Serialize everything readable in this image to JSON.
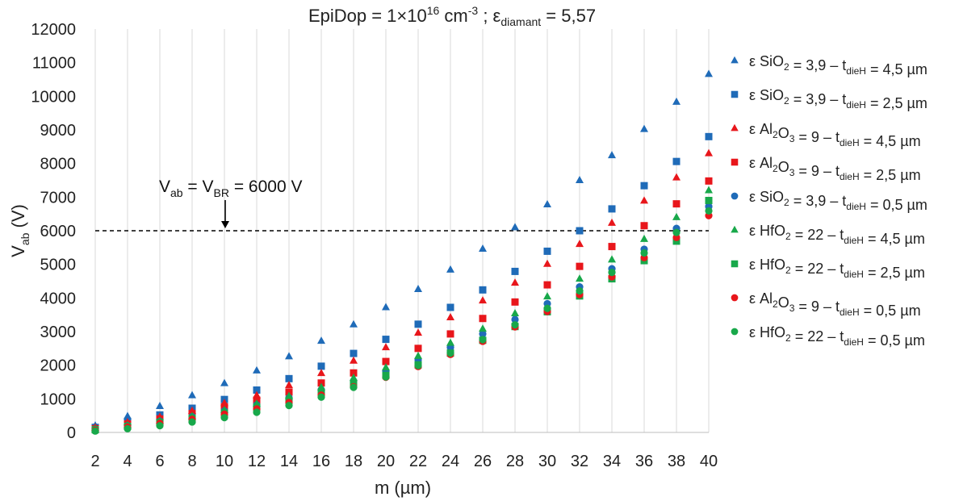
{
  "chart_data": {
    "type": "scatter",
    "title": {
      "prefix": "EpiDop = 1×10",
      "sup1": "16",
      "mid": " cm",
      "sup2": "-3",
      "mid2": " ; ε",
      "sub": "diamant",
      "suffix": " = 5,57"
    },
    "xlabel": "m (µm)",
    "ylabel": {
      "main": "V",
      "sub": "ab",
      "unit": " (V)"
    },
    "xlim": [
      2,
      40
    ],
    "ylim": [
      0,
      12000
    ],
    "x_ticks": [
      2,
      4,
      6,
      8,
      10,
      12,
      14,
      16,
      18,
      20,
      22,
      24,
      26,
      28,
      30,
      32,
      34,
      36,
      38,
      40
    ],
    "y_ticks": [
      0,
      1000,
      2000,
      3000,
      4000,
      5000,
      6000,
      7000,
      8000,
      9000,
      10000,
      11000,
      12000
    ],
    "grid": "vertical",
    "legend_position": "right",
    "x": [
      2,
      4,
      6,
      8,
      10,
      12,
      14,
      16,
      18,
      20,
      22,
      24,
      26,
      28,
      30,
      32,
      34,
      36,
      38,
      40
    ],
    "reference_line": {
      "y": 6000,
      "style": "dashed",
      "label": {
        "p1": "V",
        "s1": "ab",
        "p2": " = V",
        "s2": "BR",
        "p3": " = 6000 V"
      },
      "arrow_x": 10
    },
    "series": [
      {
        "name": "ε SiO2 = 3,9 – tdieH = 4,5 µm",
        "label": {
          "a": "ε SiO",
          "a_sub": "2",
          "b": " = 3,9 – t",
          "b_sub": "dieH",
          "c": " = 4,5 µm"
        },
        "marker": "triangle",
        "color": "#1f6bb8",
        "values": [
          200,
          480,
          780,
          1100,
          1460,
          1840,
          2260,
          2720,
          3210,
          3720,
          4260,
          4840,
          5460,
          6100,
          6780,
          7500,
          8240,
          9020,
          9830,
          10660
        ]
      },
      {
        "name": "ε SiO2 = 3,9 – tdieH = 2,5 µm",
        "label": {
          "a": "ε SiO",
          "a_sub": "2",
          "b": " = 3,9 – t",
          "b_sub": "dieH",
          "c": " = 2,5 µm"
        },
        "marker": "square",
        "color": "#1f6bb8",
        "values": [
          150,
          330,
          520,
          720,
          980,
          1260,
          1600,
          1970,
          2350,
          2770,
          3220,
          3720,
          4240,
          4790,
          5390,
          6000,
          6650,
          7340,
          8060,
          8800
        ]
      },
      {
        "name": "ε Al2O3 = 9 – tdieH = 4,5 µm",
        "label": {
          "a": "ε Al",
          "a_sub": "2",
          "a2": "O",
          "a2_sub": "3",
          "b": " = 9 – t",
          "b_sub": "dieH",
          "c": " = 4,5 µm"
        },
        "marker": "triangle",
        "color": "#e8161b",
        "values": [
          140,
          300,
          460,
          640,
          870,
          1100,
          1400,
          1760,
          2130,
          2530,
          2960,
          3420,
          3920,
          4450,
          5010,
          5600,
          6230,
          6890,
          7580,
          8300
        ]
      },
      {
        "name": "ε Al2O3 = 9 – tdieH = 2,5 µm",
        "label": {
          "a": "ε Al",
          "a_sub": "2",
          "a2": "O",
          "a2_sub": "3",
          "b": " = 9 – t",
          "b_sub": "dieH",
          "c": " = 2,5 µm"
        },
        "marker": "square",
        "color": "#e8161b",
        "values": [
          110,
          250,
          400,
          560,
          760,
          960,
          1200,
          1470,
          1770,
          2110,
          2500,
          2930,
          3390,
          3880,
          4390,
          4940,
          5530,
          6150,
          6800,
          7480
        ]
      },
      {
        "name": "ε SiO2 = 3,9 – tdieH = 0,5 µm",
        "label": {
          "a": "ε SiO",
          "a_sub": "2",
          "b": " = 3,9 – t",
          "b_sub": "dieH",
          "c": " = 0,5 µm"
        },
        "marker": "circle",
        "color": "#1f6bb8",
        "values": [
          90,
          200,
          330,
          470,
          640,
          820,
          1030,
          1270,
          1530,
          1820,
          2160,
          2530,
          2930,
          3360,
          3830,
          4330,
          4870,
          5450,
          6070,
          6720
        ]
      },
      {
        "name": "ε HfO2 = 22 – tdieH = 4,5 µm",
        "label": {
          "a": "ε HfO",
          "a_sub": "2",
          "b": " = 22 – t",
          "b_sub": "dieH",
          "c": " = 4,5 µm"
        },
        "marker": "triangle",
        "color": "#18a84a",
        "values": [
          95,
          210,
          340,
          480,
          660,
          850,
          1080,
          1340,
          1620,
          1930,
          2270,
          2660,
          3080,
          3540,
          4040,
          4570,
          5140,
          5750,
          6400,
          7200
        ]
      },
      {
        "name": "ε HfO2 = 22 – tdieH = 2,5 µm",
        "label": {
          "a": "ε HfO",
          "a_sub": "2",
          "b": " = 22 – t",
          "b_sub": "dieH",
          "c": " = 2,5 µm"
        },
        "marker": "square",
        "color": "#18a84a",
        "values": [
          80,
          180,
          300,
          420,
          580,
          750,
          950,
          1180,
          1430,
          1700,
          2010,
          2360,
          2740,
          3150,
          3590,
          4060,
          4570,
          5110,
          5690,
          6900
        ]
      },
      {
        "name": "ε Al2O3 = 9 – tdieH = 0,5 µm",
        "label": {
          "a": "ε Al",
          "a_sub": "2",
          "a2": "O",
          "a2_sub": "3",
          "b": " = 9 – t",
          "b_sub": "dieH",
          "c": " = 0,5 µm"
        },
        "marker": "circle",
        "color": "#e8161b",
        "values": [
          60,
          160,
          270,
          390,
          540,
          700,
          890,
          1110,
          1360,
          1640,
          1960,
          2320,
          2710,
          3140,
          3600,
          4100,
          4630,
          5200,
          5800,
          6450
        ]
      },
      {
        "name": "ε HfO2 = 22 – tdieH = 0,5 µm",
        "label": {
          "a": "ε HfO",
          "a_sub": "2",
          "b": " = 22 – t",
          "b_sub": "dieH",
          "c": " = 0,5 µm"
        },
        "marker": "circle",
        "color": "#18a84a",
        "values": [
          40,
          110,
          200,
          310,
          440,
          600,
          800,
          1050,
          1340,
          1650,
          1990,
          2360,
          2760,
          3200,
          3690,
          4210,
          4760,
          5340,
          5950,
          6590
        ]
      }
    ]
  }
}
